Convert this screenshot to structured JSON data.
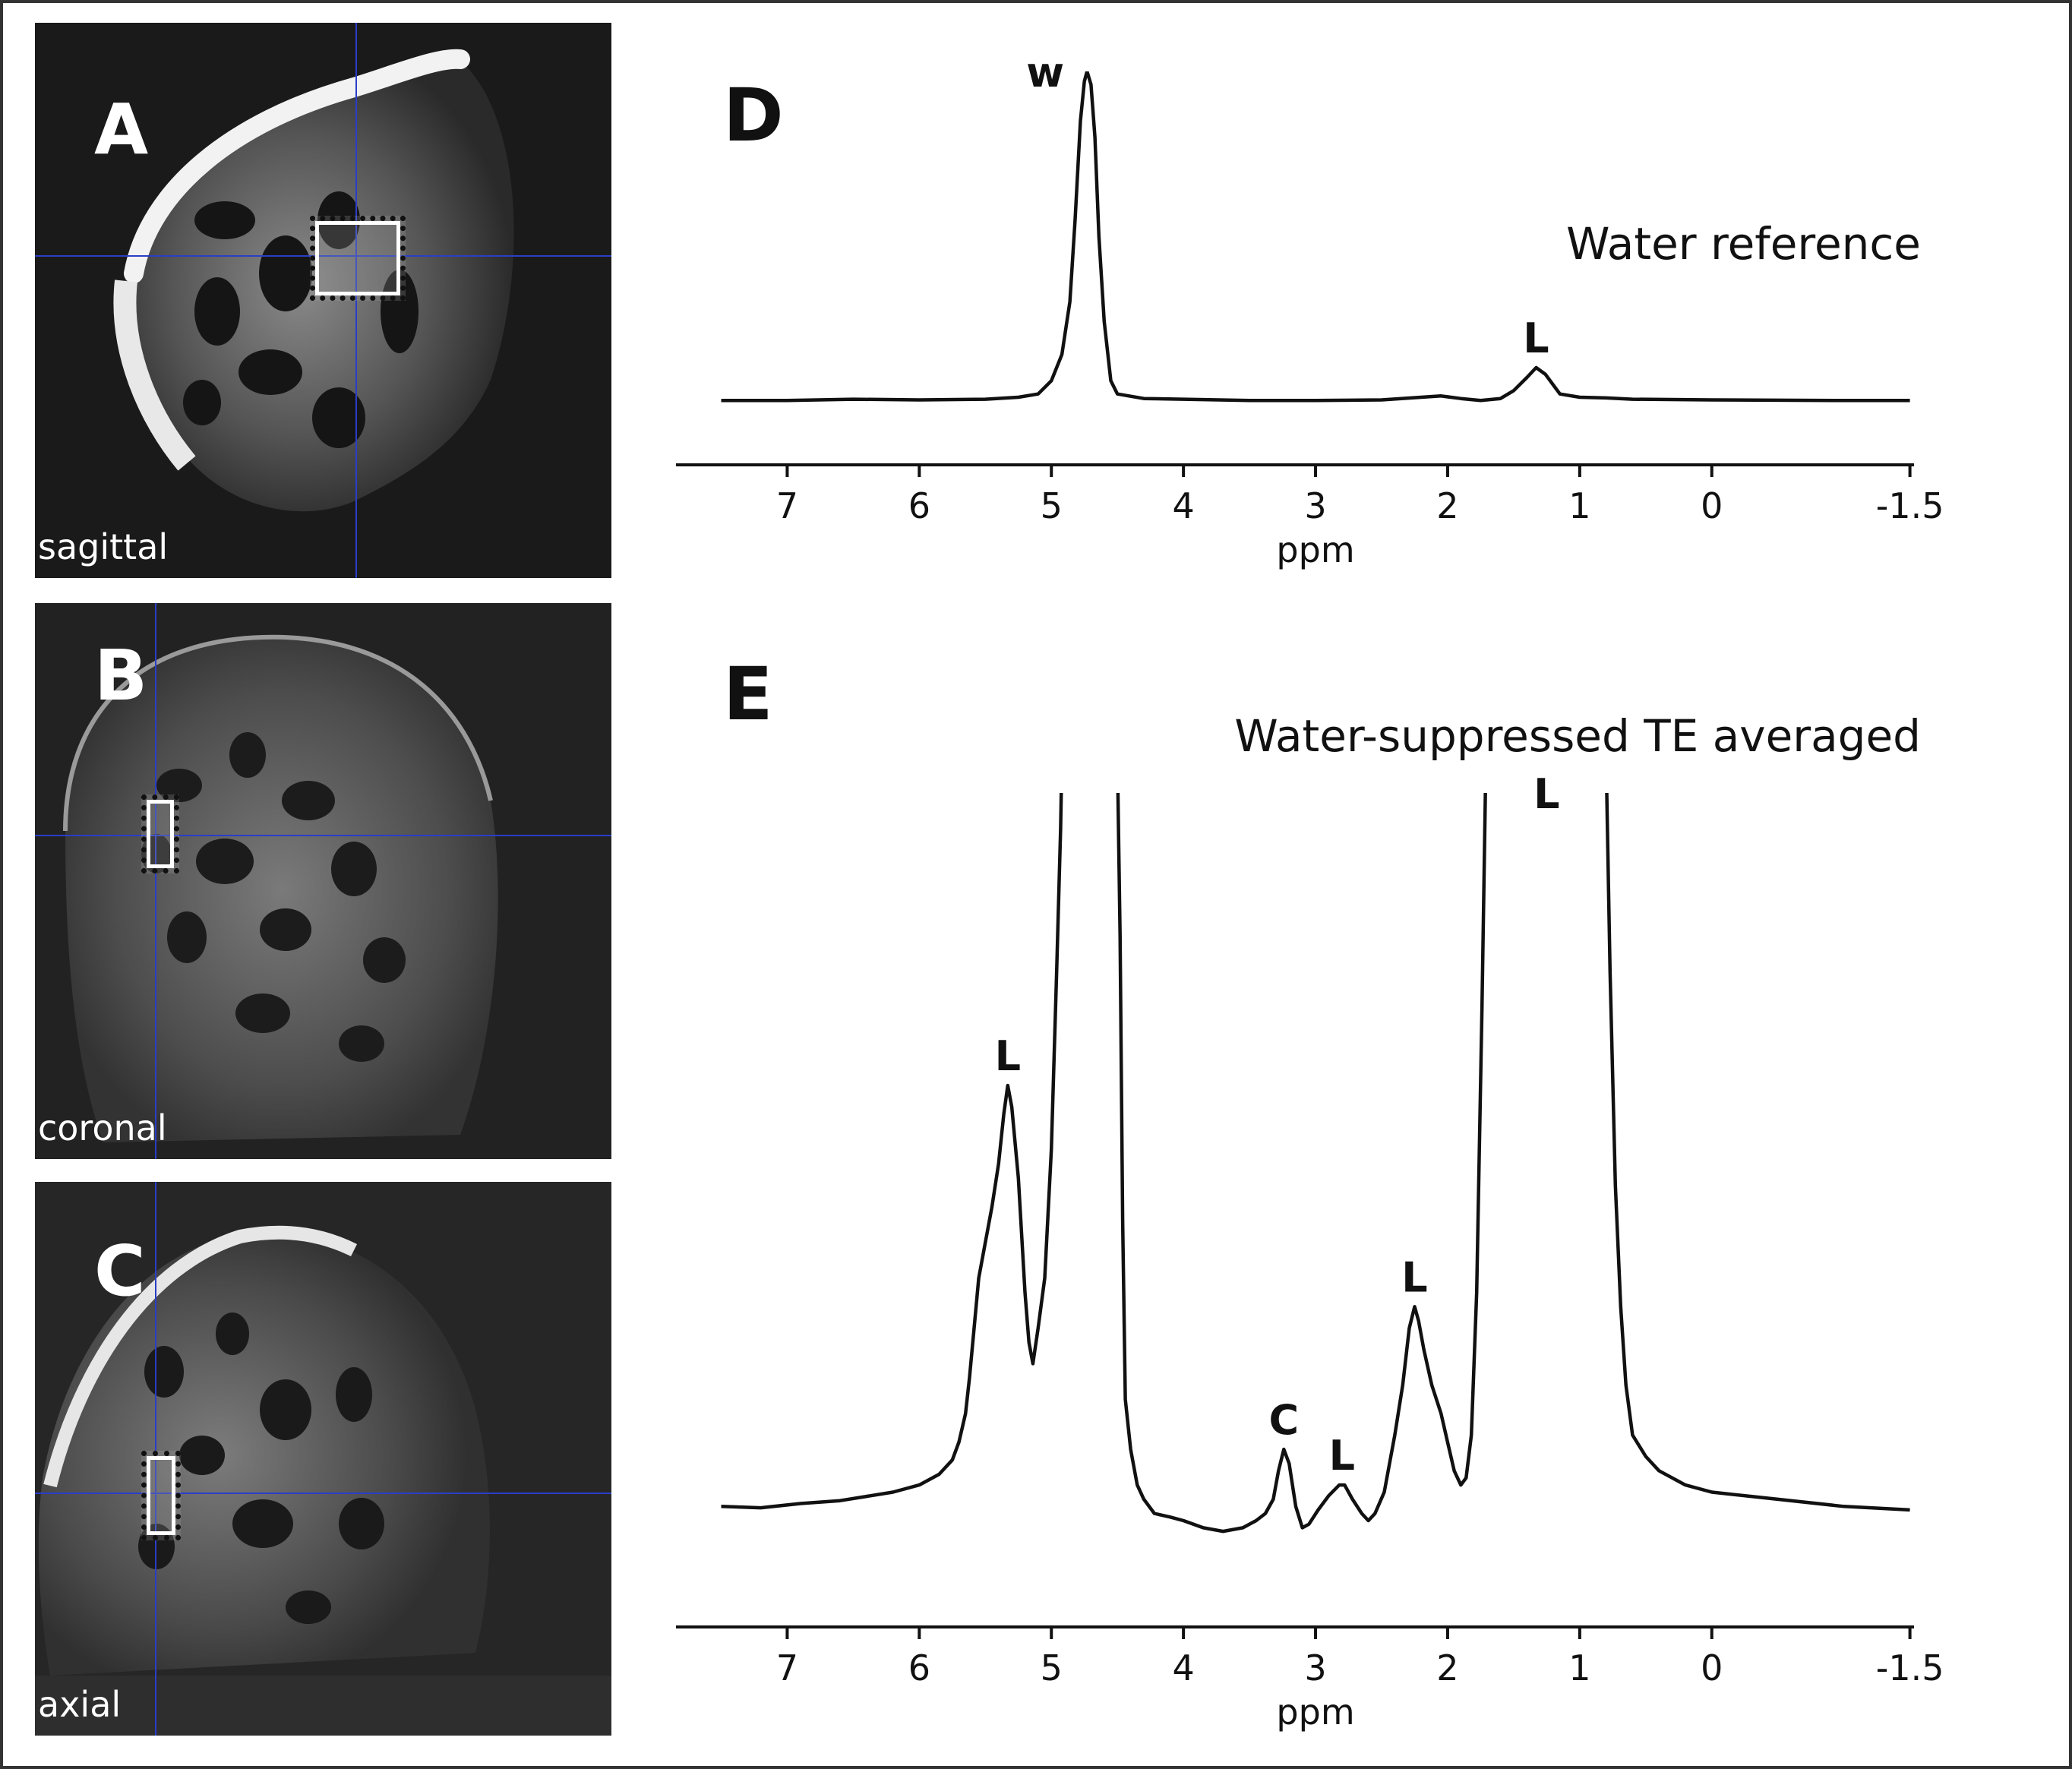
{
  "panels": {
    "a": {
      "letter": "A",
      "view": "sagittal"
    },
    "b": {
      "letter": "B",
      "view": "coronal"
    },
    "c": {
      "letter": "C",
      "view": "axial"
    }
  },
  "spectra": {
    "d": {
      "letter": "D",
      "title": "Water reference"
    },
    "e": {
      "letter": "E",
      "title": "Water-suppressed TE averaged"
    }
  },
  "colors": {
    "crosshair": "#2a3ec8",
    "trace": "#111111",
    "background": "#ffffff"
  },
  "chart_data": [
    {
      "type": "line",
      "xlabel": "ppm",
      "ylabel": "",
      "x_reversed": true,
      "xlim": [
        7.75,
        -1.6
      ],
      "xtick_values": [
        7,
        6,
        5,
        4,
        3,
        2,
        1,
        0,
        -1.5
      ],
      "xtick_labels": [
        "7",
        "6",
        "5",
        "4",
        "3",
        "2",
        "1",
        "0",
        "-1.5"
      ],
      "ylim": [
        -0.05,
        1.0
      ],
      "series": [
        {
          "values": [
            [
              7.5,
              0.0
            ],
            [
              7.0,
              0.0
            ],
            [
              6.5,
              0.004
            ],
            [
              6.0,
              0.002
            ],
            [
              5.5,
              0.004
            ],
            [
              5.25,
              0.01
            ],
            [
              5.1,
              0.02
            ],
            [
              5.0,
              0.06
            ],
            [
              4.92,
              0.14
            ],
            [
              4.86,
              0.3
            ],
            [
              4.82,
              0.55
            ],
            [
              4.78,
              0.85
            ],
            [
              4.75,
              0.97
            ],
            [
              4.73,
              1.0
            ],
            [
              4.7,
              0.96
            ],
            [
              4.67,
              0.8
            ],
            [
              4.64,
              0.5
            ],
            [
              4.6,
              0.24
            ],
            [
              4.55,
              0.06
            ],
            [
              4.5,
              0.02
            ],
            [
              4.3,
              0.006
            ],
            [
              4.0,
              0.004
            ],
            [
              3.5,
              0.0
            ],
            [
              3.0,
              0.0
            ],
            [
              2.5,
              0.002
            ],
            [
              2.2,
              0.01
            ],
            [
              2.05,
              0.014
            ],
            [
              1.9,
              0.006
            ],
            [
              1.75,
              0.0
            ],
            [
              1.6,
              0.006
            ],
            [
              1.5,
              0.03
            ],
            [
              1.4,
              0.07
            ],
            [
              1.33,
              0.1
            ],
            [
              1.26,
              0.08
            ],
            [
              1.15,
              0.02
            ],
            [
              1.0,
              0.01
            ],
            [
              0.8,
              0.008
            ],
            [
              0.6,
              0.004
            ],
            [
              0.0,
              0.002
            ],
            [
              -1.0,
              0.0
            ],
            [
              -1.5,
              0.0
            ]
          ]
        }
      ],
      "annotations": [
        {
          "text": "w",
          "x": 4.73,
          "y": 1.0
        },
        {
          "text": "L",
          "x": 1.33,
          "y": 0.1
        }
      ]
    },
    {
      "type": "line",
      "xlabel": "ppm",
      "ylabel": "",
      "x_reversed": true,
      "xlim": [
        7.75,
        -1.6
      ],
      "xtick_values": [
        7,
        6,
        5,
        4,
        3,
        2,
        1,
        0,
        -1.5
      ],
      "xtick_labels": [
        "7",
        "6",
        "5",
        "4",
        "3",
        "2",
        "1",
        "0",
        "-1.5"
      ],
      "ylim": [
        -0.07,
        1.0
      ],
      "series": [
        {
          "values": [
            [
              7.5,
              0.0
            ],
            [
              7.2,
              -0.002
            ],
            [
              6.9,
              0.004
            ],
            [
              6.6,
              0.008
            ],
            [
              6.4,
              0.014
            ],
            [
              6.2,
              0.02
            ],
            [
              6.0,
              0.03
            ],
            [
              5.85,
              0.045
            ],
            [
              5.75,
              0.065
            ],
            [
              5.7,
              0.09
            ],
            [
              5.65,
              0.13
            ],
            [
              5.62,
              0.18
            ],
            [
              5.58,
              0.26
            ],
            [
              5.55,
              0.32
            ],
            [
              5.5,
              0.37
            ],
            [
              5.45,
              0.42
            ],
            [
              5.4,
              0.48
            ],
            [
              5.36,
              0.55
            ],
            [
              5.33,
              0.59
            ],
            [
              5.3,
              0.56
            ],
            [
              5.25,
              0.46
            ],
            [
              5.2,
              0.3
            ],
            [
              5.17,
              0.23
            ],
            [
              5.14,
              0.2
            ],
            [
              5.1,
              0.25
            ],
            [
              5.05,
              0.32
            ],
            [
              5.0,
              0.5
            ],
            [
              4.96,
              0.75
            ],
            [
              4.93,
              0.95
            ],
            [
              4.92,
              1.05
            ],
            [
              4.5,
              1.05
            ],
            [
              4.48,
              0.8
            ],
            [
              4.46,
              0.4
            ],
            [
              4.44,
              0.15
            ],
            [
              4.4,
              0.08
            ],
            [
              4.35,
              0.03
            ],
            [
              4.3,
              0.01
            ],
            [
              4.22,
              -0.01
            ],
            [
              4.1,
              -0.015
            ],
            [
              4.0,
              -0.02
            ],
            [
              3.85,
              -0.03
            ],
            [
              3.7,
              -0.035
            ],
            [
              3.55,
              -0.03
            ],
            [
              3.45,
              -0.02
            ],
            [
              3.38,
              -0.01
            ],
            [
              3.32,
              0.01
            ],
            [
              3.28,
              0.05
            ],
            [
              3.24,
              0.08
            ],
            [
              3.2,
              0.06
            ],
            [
              3.15,
              0.0
            ],
            [
              3.1,
              -0.03
            ],
            [
              3.05,
              -0.025
            ],
            [
              2.98,
              -0.005
            ],
            [
              2.9,
              0.015
            ],
            [
              2.82,
              0.03
            ],
            [
              2.78,
              0.03
            ],
            [
              2.72,
              0.01
            ],
            [
              2.65,
              -0.01
            ],
            [
              2.6,
              -0.02
            ],
            [
              2.55,
              -0.01
            ],
            [
              2.48,
              0.02
            ],
            [
              2.4,
              0.1
            ],
            [
              2.34,
              0.17
            ],
            [
              2.29,
              0.25
            ],
            [
              2.25,
              0.28
            ],
            [
              2.22,
              0.26
            ],
            [
              2.18,
              0.22
            ],
            [
              2.12,
              0.17
            ],
            [
              2.05,
              0.13
            ],
            [
              2.0,
              0.09
            ],
            [
              1.95,
              0.05
            ],
            [
              1.9,
              0.03
            ],
            [
              1.86,
              0.04
            ],
            [
              1.82,
              0.1
            ],
            [
              1.78,
              0.3
            ],
            [
              1.74,
              0.7
            ],
            [
              1.71,
              1.05
            ],
            [
              0.8,
              1.05
            ],
            [
              0.77,
              0.75
            ],
            [
              0.73,
              0.45
            ],
            [
              0.69,
              0.28
            ],
            [
              0.65,
              0.17
            ],
            [
              0.6,
              0.1
            ],
            [
              0.5,
              0.07
            ],
            [
              0.4,
              0.05
            ],
            [
              0.2,
              0.03
            ],
            [
              0.0,
              0.02
            ],
            [
              -0.5,
              0.01
            ],
            [
              -1.0,
              0.0
            ],
            [
              -1.5,
              -0.005
            ]
          ]
        }
      ],
      "annotations": [
        {
          "text": "L",
          "x": 5.33,
          "y": 0.59
        },
        {
          "text": "C",
          "x": 3.24,
          "y": 0.08
        },
        {
          "text": "L",
          "x": 2.8,
          "y": 0.03
        },
        {
          "text": "L",
          "x": 2.25,
          "y": 0.28
        },
        {
          "text": "L",
          "x": 1.25,
          "y": 1.0
        }
      ]
    }
  ]
}
